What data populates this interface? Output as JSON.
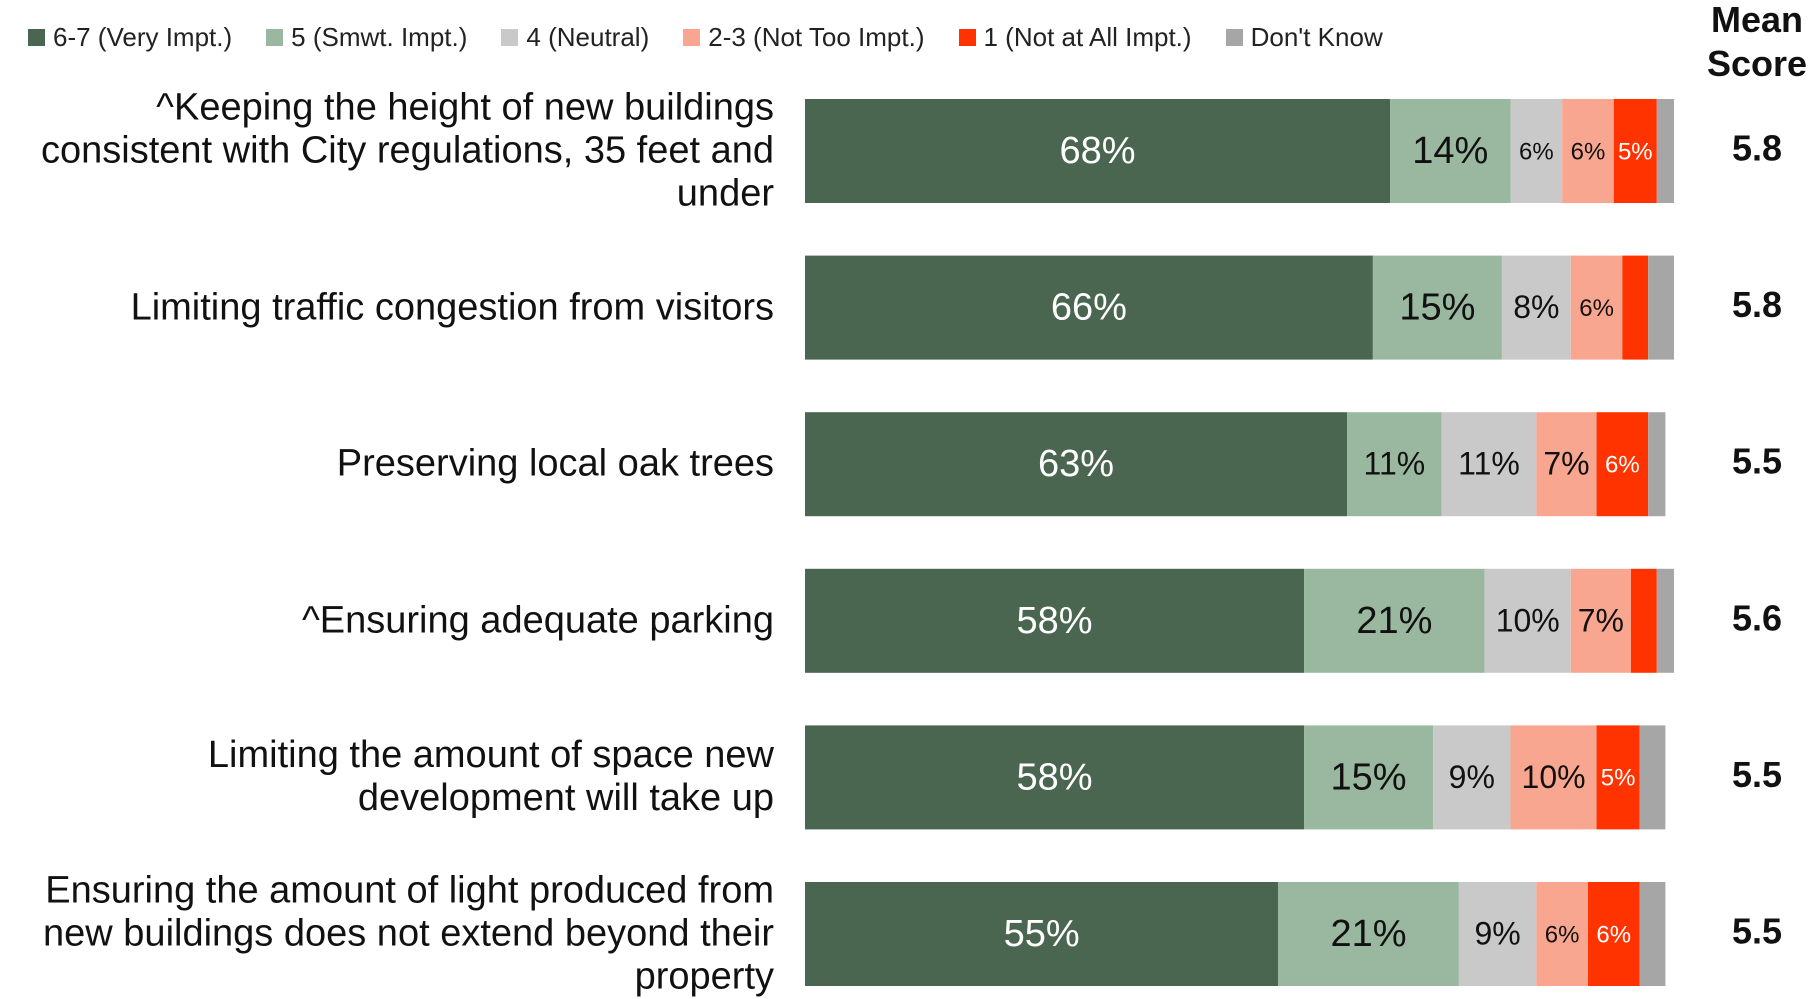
{
  "chart_data": {
    "type": "stacked-bar-horizontal",
    "mean_header": "Mean Score",
    "categories": [
      "^Keeping the height of new buildings consistent with City regulations, 35 feet and under",
      "Limiting traffic congestion from visitors",
      "Preserving local oak trees",
      "^Ensuring adequate parking",
      "Limiting the amount of space new development will take up",
      "Ensuring the amount of light produced from new buildings does not extend beyond their property"
    ],
    "series": [
      {
        "name": "6-7 (Very Impt.)",
        "color": "#4a6650",
        "label_color": "#ffffff",
        "values": [
          68,
          66,
          63,
          58,
          58,
          55
        ],
        "value_labels": [
          "68%",
          "66%",
          "63%",
          "58%",
          "58%",
          "55%"
        ]
      },
      {
        "name": "5 (Smwt. Impt.)",
        "color": "#9ab89f",
        "label_color": "#111111",
        "values": [
          14,
          15,
          11,
          21,
          15,
          21
        ],
        "value_labels": [
          "14%",
          "15%",
          "11%",
          "21%",
          "15%",
          "21%"
        ]
      },
      {
        "name": "4 (Neutral)",
        "color": "#c9c9c9",
        "label_color": "#111111",
        "values": [
          6,
          8,
          11,
          10,
          9,
          9
        ],
        "value_labels": [
          "6%",
          "8%",
          "11%",
          "10%",
          "9%",
          "9%"
        ]
      },
      {
        "name": "2-3 (Not Too Impt.)",
        "color": "#f9a690",
        "label_color": "#111111",
        "values": [
          6,
          6,
          7,
          7,
          10,
          6
        ],
        "value_labels": [
          "6%",
          "6%",
          "7%",
          "7%",
          "10%",
          "6%"
        ]
      },
      {
        "name": "1 (Not at All Impt.)",
        "color": "#ff3300",
        "label_color": "#ffffff",
        "values": [
          5,
          3,
          6,
          3,
          5,
          6
        ],
        "value_labels": [
          "5%",
          null,
          "6%",
          null,
          "5%",
          "6%"
        ]
      },
      {
        "name": "Don't Know",
        "color": "#a6a6a6",
        "label_color": "#111111",
        "values": [
          2,
          3,
          2,
          2,
          3,
          3
        ],
        "value_labels": [
          null,
          null,
          null,
          null,
          null,
          null
        ]
      }
    ],
    "mean_scores": [
      5.8,
      5.8,
      5.5,
      5.6,
      5.5,
      5.5
    ],
    "xlim": [
      0,
      101
    ]
  }
}
